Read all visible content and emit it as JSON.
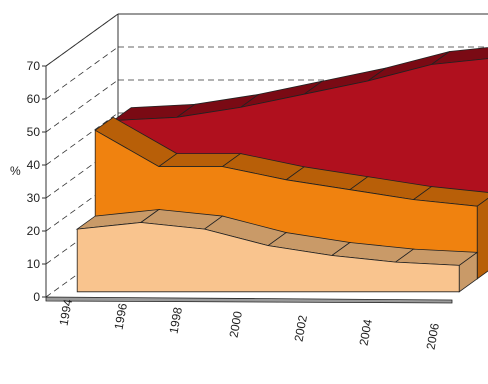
{
  "chart_data": {
    "type": "area",
    "variant": "3d-stacked-ribbons",
    "title": "",
    "xlabel": "",
    "ylabel": "%",
    "ylim": [
      0,
      70
    ],
    "yticks": [
      0,
      10,
      20,
      30,
      40,
      50,
      60,
      70
    ],
    "x": [
      1994,
      1996,
      1998,
      2000,
      2002,
      2004,
      2006
    ],
    "xticks": [
      "1994",
      "1996",
      "1998",
      "2000",
      "2002",
      "2004",
      "2006"
    ],
    "grid": true,
    "legend": "none",
    "series": [
      {
        "values": [
          44,
          45,
          48,
          52,
          56,
          61,
          63
        ],
        "color": "#B0101E",
        "side_color": "#7A0A14"
      },
      {
        "values": [
          45,
          34,
          34,
          30,
          27,
          24,
          22
        ],
        "color": "#F0820F",
        "side_color": "#B85F08"
      },
      {
        "values": [
          19,
          21,
          19,
          14,
          11,
          9,
          8
        ],
        "color": "#F9C48E",
        "side_color": "#C99A68"
      }
    ],
    "floor_color": "#9A9A9A"
  }
}
